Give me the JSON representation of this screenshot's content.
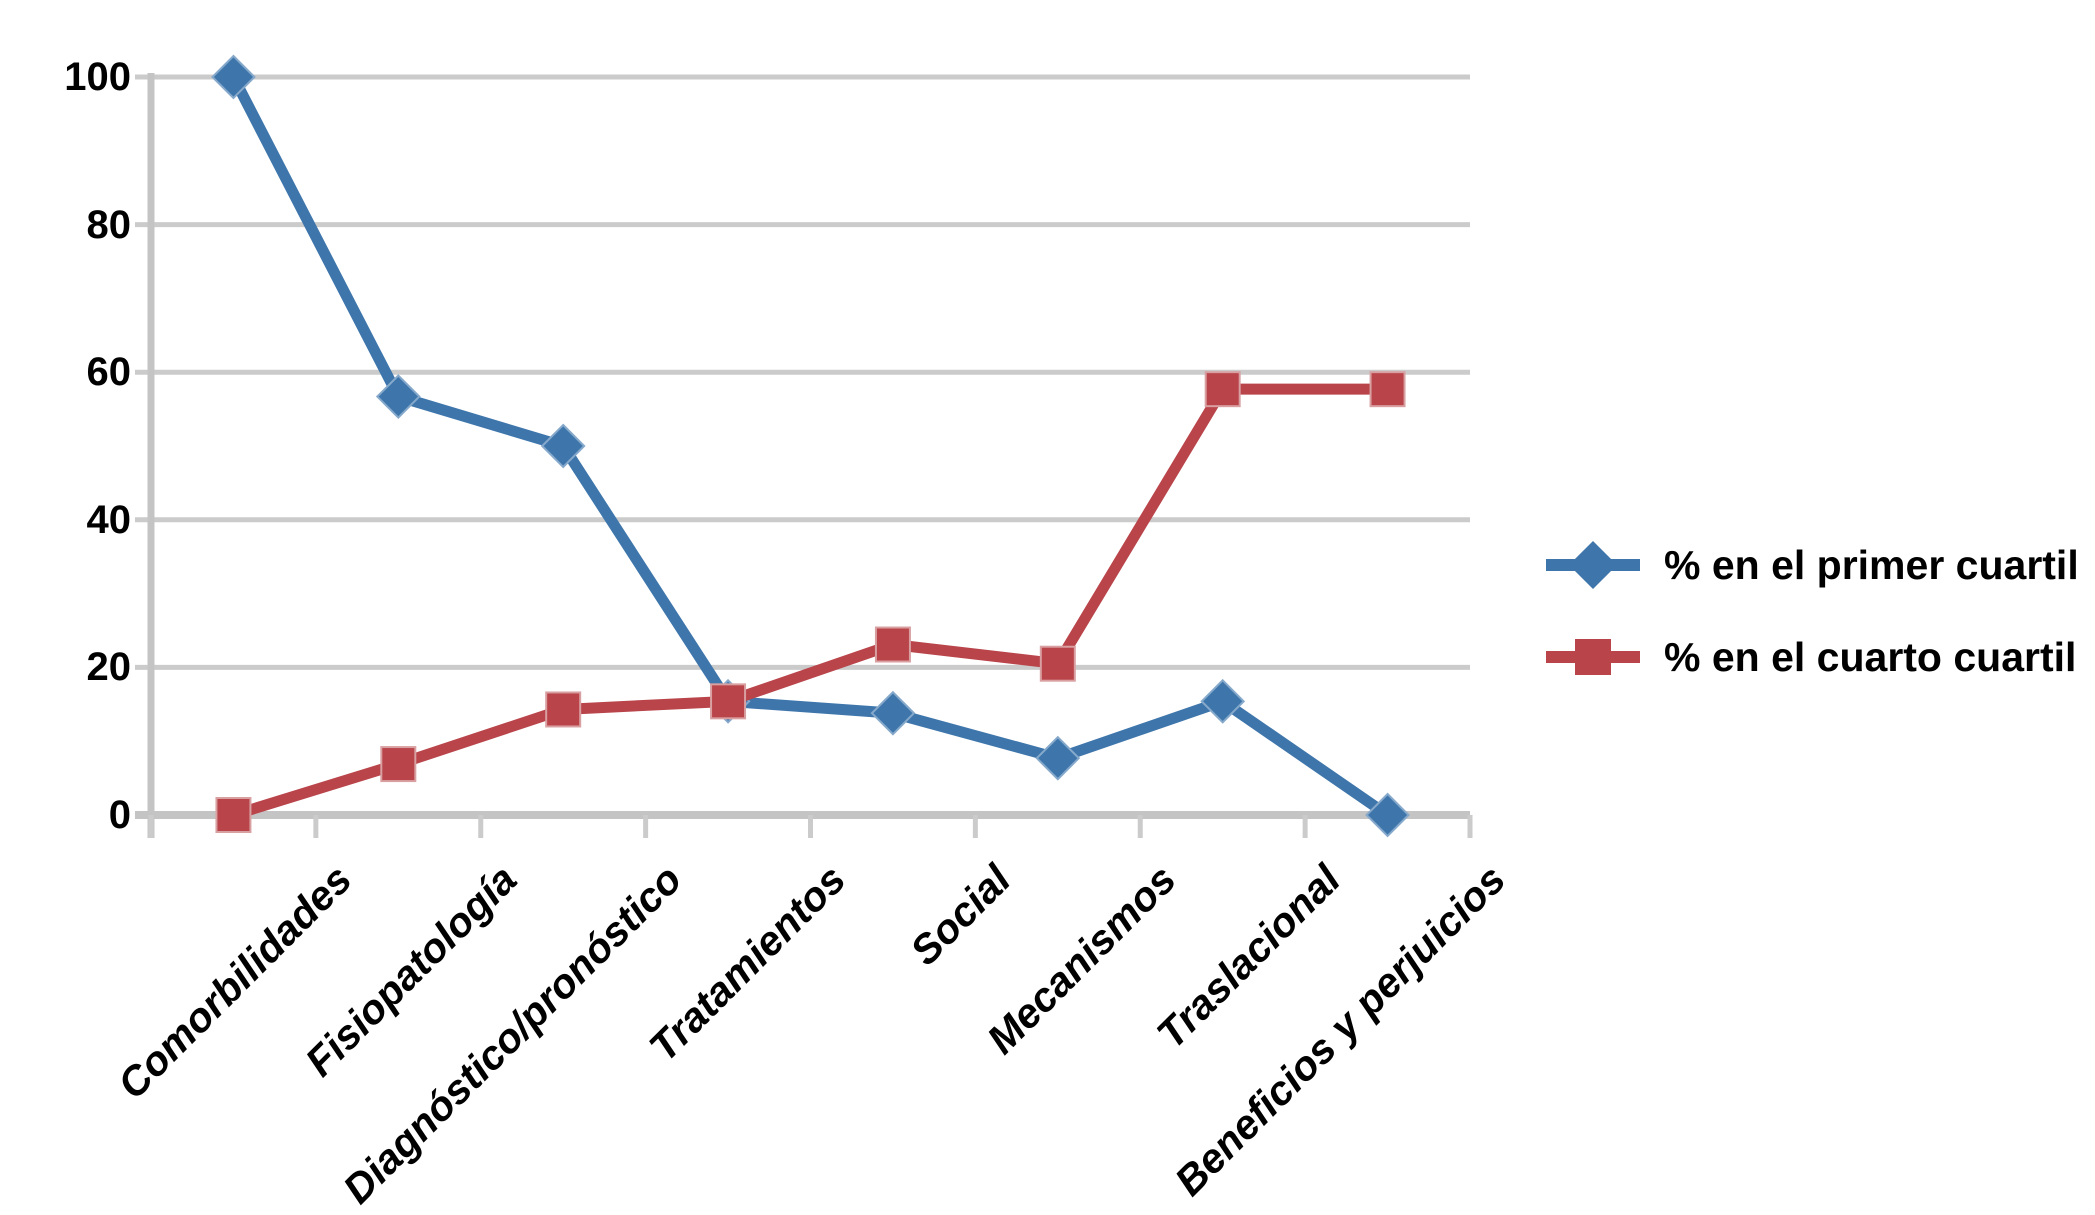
{
  "chart_data": {
    "type": "line",
    "title": "",
    "xlabel": "",
    "ylabel": "",
    "categories": [
      "Comorbilidades",
      "Fisiopatología",
      "Diagnóstico/pronóstico",
      "Tratamientos",
      "Social",
      "Mecanismos",
      "Traslacional",
      "Beneficios y perjuicios"
    ],
    "series": [
      {
        "name": "% en el primer cuartil",
        "marker": "diamond",
        "color": "#3E76AC",
        "marker_edge": "#86A9CB",
        "values": [
          100,
          56.7,
          50,
          15.4,
          13.8,
          7.7,
          15.4,
          0
        ]
      },
      {
        "name": "% en el cuarto cuartil",
        "marker": "square",
        "color": "#B9444A",
        "marker_edge": "#D9A0A2",
        "values": [
          0,
          6.9,
          14.3,
          15.4,
          23.1,
          20.5,
          57.7,
          57.7
        ]
      }
    ],
    "ylim": [
      0,
      100
    ],
    "y_ticks": [
      100,
      80,
      60,
      40,
      20,
      0
    ],
    "grid": "horizontal gridlines on",
    "legend_position": "right",
    "colors": {
      "gridline": "#CBCBCB",
      "axis": "#C4C4C4",
      "text": "#000000",
      "background": "#FFFFFF"
    }
  }
}
